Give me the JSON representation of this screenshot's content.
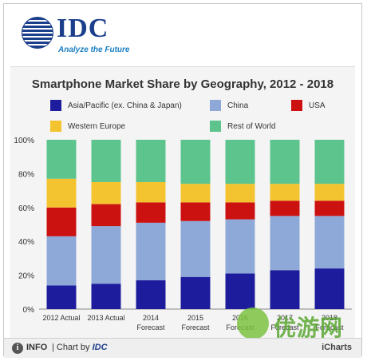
{
  "header": {
    "logo_text": "IDC",
    "tagline": "Analyze the Future"
  },
  "footer": {
    "info_label": "INFO",
    "chart_by_prefix": "| Chart by",
    "chart_by_brand": "IDC",
    "brand_right": "iCharts"
  },
  "watermark": {
    "text": "优游网"
  },
  "chart_data": {
    "type": "bar",
    "stacked": true,
    "percent": true,
    "title": "Smartphone Market Share by Geography, 2012 - 2018",
    "categories": [
      "2012 Actual",
      "2013 Actual",
      "2014 Forecast",
      "2015 Forecast",
      "2016 Forecast",
      "2017 Forecast",
      "2018 Forecast"
    ],
    "series": [
      {
        "name": "Asia/Pacific (ex. China & Japan)",
        "color": "#1c1c9c",
        "values": [
          14,
          15,
          17,
          19,
          21,
          23,
          24
        ]
      },
      {
        "name": "China",
        "color": "#8ea8d8",
        "values": [
          29,
          34,
          34,
          33,
          32,
          32,
          31
        ]
      },
      {
        "name": "USA",
        "color": "#cc1111",
        "values": [
          17,
          13,
          12,
          11,
          10,
          9,
          9
        ]
      },
      {
        "name": "Western Europe",
        "color": "#f4c430",
        "values": [
          17,
          13,
          12,
          11,
          11,
          10,
          10
        ]
      },
      {
        "name": "Rest of World",
        "color": "#5cc48c",
        "values": [
          23,
          25,
          25,
          26,
          26,
          26,
          26
        ]
      }
    ],
    "ylim": [
      0,
      100
    ],
    "yticks": [
      "0%",
      "20%",
      "40%",
      "60%",
      "80%",
      "100%"
    ],
    "grid": false,
    "legend_position": "top"
  }
}
